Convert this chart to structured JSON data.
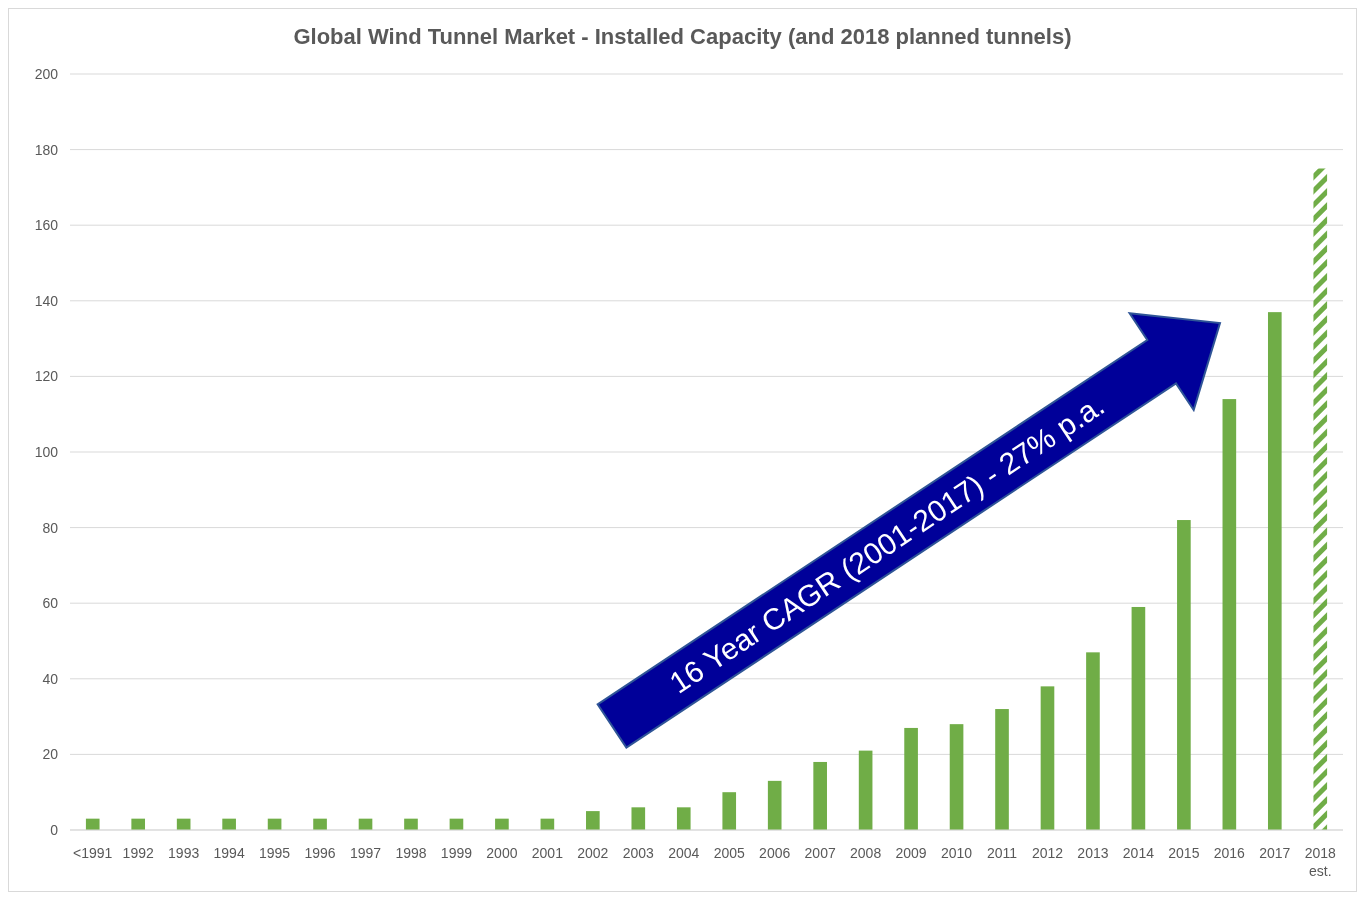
{
  "chart_data": {
    "type": "bar",
    "title": "Global Wind Tunnel Market - Installed Capacity (and 2018 planned tunnels)",
    "categories": [
      "<1991",
      "1992",
      "1993",
      "1994",
      "1995",
      "1996",
      "1997",
      "1998",
      "1999",
      "2000",
      "2001",
      "2002",
      "2003",
      "2004",
      "2005",
      "2006",
      "2007",
      "2008",
      "2009",
      "2010",
      "2011",
      "2012",
      "2013",
      "2014",
      "2015",
      "2016",
      "2017",
      "2018\nest."
    ],
    "series": [
      {
        "color": "#70ad47",
        "values": [
          3,
          3,
          3,
          3,
          3,
          3,
          3,
          3,
          3,
          3,
          3,
          5,
          6,
          6,
          10,
          13,
          18,
          21,
          27,
          28,
          32,
          38,
          47,
          59,
          82,
          114,
          137,
          null
        ]
      },
      {
        "color": "#70ad47",
        "line_style": "dashed",
        "values": [
          null,
          null,
          null,
          null,
          null,
          null,
          null,
          null,
          null,
          null,
          null,
          null,
          null,
          null,
          null,
          null,
          null,
          null,
          null,
          null,
          null,
          null,
          null,
          null,
          null,
          null,
          null,
          175
        ]
      }
    ],
    "ylim": [
      0,
      200
    ],
    "yticks": [
      0,
      20,
      40,
      60,
      80,
      100,
      120,
      140,
      160,
      180,
      200
    ],
    "grid": "y",
    "annotations": [
      "16 Year CAGR (2001-2017) - 27% p.a."
    ]
  }
}
